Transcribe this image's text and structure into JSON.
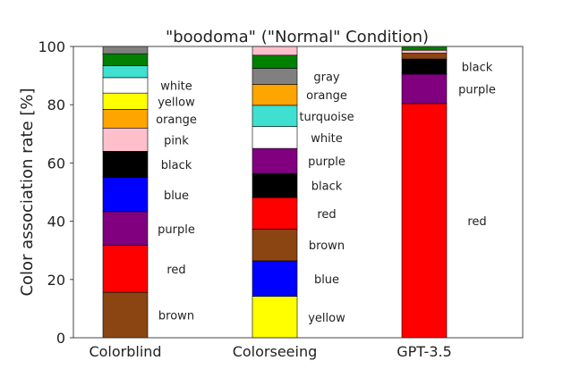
{
  "chart_data": {
    "type": "bar",
    "stacked": true,
    "title": "\"boodoma\" (\"Normal\" Condition)",
    "xlabel": "",
    "ylabel": "Color association rate [%]",
    "ylim": [
      0,
      100
    ],
    "yticks": [
      0,
      20,
      40,
      60,
      80,
      100
    ],
    "grid": false,
    "legend": "none",
    "categories": [
      "Colorblind",
      "Colorseeing",
      "GPT-3.5"
    ],
    "stacks": [
      {
        "category": "Colorblind",
        "segments": [
          {
            "name": "brown",
            "value": 15.6,
            "color": "#8B4513",
            "labeled": true
          },
          {
            "name": "red",
            "value": 16.1,
            "color": "#FF0000",
            "labeled": true
          },
          {
            "name": "purple",
            "value": 11.6,
            "color": "#800080",
            "labeled": true
          },
          {
            "name": "blue",
            "value": 11.7,
            "color": "#0000FF",
            "labeled": true
          },
          {
            "name": "black",
            "value": 9.0,
            "color": "#000000",
            "labeled": true
          },
          {
            "name": "pink",
            "value": 8.0,
            "color": "#FFC0CB",
            "labeled": true
          },
          {
            "name": "orange",
            "value": 6.4,
            "color": "#FFA500",
            "labeled": true
          },
          {
            "name": "yellow",
            "value": 5.6,
            "color": "#FFFF00",
            "labeled": true
          },
          {
            "name": "white",
            "value": 5.3,
            "color": "#FFFFFF",
            "labeled": true
          },
          {
            "name": "turquoise",
            "value": 4.1,
            "color": "#40E0D0",
            "labeled": false
          },
          {
            "name": "green",
            "value": 4.1,
            "color": "#008000",
            "labeled": false
          },
          {
            "name": "gray",
            "value": 2.5,
            "color": "#808080",
            "labeled": false
          }
        ]
      },
      {
        "category": "Colorseeing",
        "segments": [
          {
            "name": "yellow",
            "value": 14.2,
            "color": "#FFFF00",
            "labeled": true
          },
          {
            "name": "blue",
            "value": 12.2,
            "color": "#0000FF",
            "labeled": true
          },
          {
            "name": "brown",
            "value": 10.9,
            "color": "#8B4513",
            "labeled": true
          },
          {
            "name": "red",
            "value": 10.8,
            "color": "#FF0000",
            "labeled": true
          },
          {
            "name": "black",
            "value": 8.3,
            "color": "#000000",
            "labeled": true
          },
          {
            "name": "purple",
            "value": 8.6,
            "color": "#800080",
            "labeled": true
          },
          {
            "name": "white",
            "value": 7.5,
            "color": "#FFFFFF",
            "labeled": true
          },
          {
            "name": "turquoise",
            "value": 7.3,
            "color": "#40E0D0",
            "labeled": true
          },
          {
            "name": "orange",
            "value": 7.2,
            "color": "#FFA500",
            "labeled": true
          },
          {
            "name": "gray",
            "value": 5.5,
            "color": "#808080",
            "labeled": true
          },
          {
            "name": "green",
            "value": 4.5,
            "color": "#008000",
            "labeled": false
          },
          {
            "name": "pink",
            "value": 3.0,
            "color": "#FFC0CB",
            "labeled": false
          }
        ]
      },
      {
        "category": "GPT-3.5",
        "segments": [
          {
            "name": "red",
            "value": 80.4,
            "color": "#FF0000",
            "labeled": true
          },
          {
            "name": "purple",
            "value": 10.1,
            "color": "#800080",
            "labeled": true
          },
          {
            "name": "black",
            "value": 5.2,
            "color": "#000000",
            "labeled": true
          },
          {
            "name": "brown",
            "value": 2.0,
            "color": "#8B4513",
            "labeled": false
          },
          {
            "name": "pink",
            "value": 1.0,
            "color": "#FFC0CB",
            "labeled": false
          },
          {
            "name": "green",
            "value": 1.3,
            "color": "#008000",
            "labeled": false
          }
        ]
      }
    ]
  }
}
